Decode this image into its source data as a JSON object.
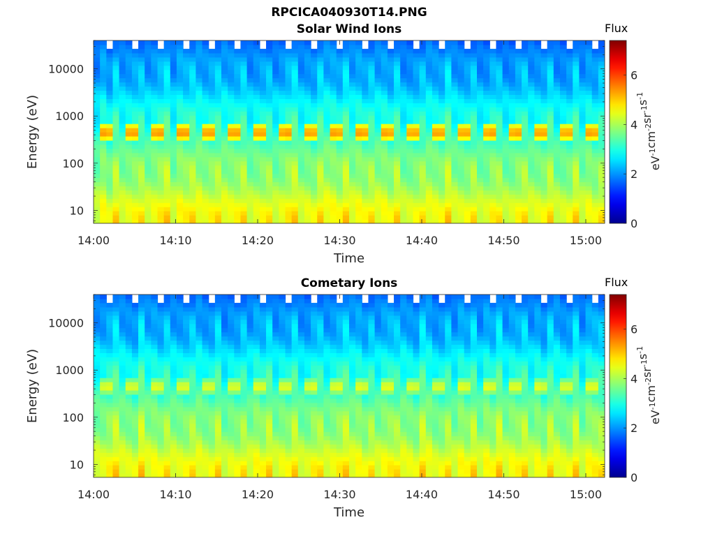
{
  "figure": {
    "title": "RPCICA040930T14.PNG"
  },
  "colormap": {
    "name": "jet",
    "stops": [
      "#00008f",
      "#0000ff",
      "#00ffff",
      "#ffff00",
      "#ff0000",
      "#800000"
    ]
  },
  "colorbar": {
    "label": "Flux",
    "units_text": "eV-1cm-2sr-1s-1",
    "ticks": [
      "0",
      "2",
      "4",
      "6"
    ],
    "range": [
      0,
      7.4
    ]
  },
  "axes": {
    "xlabel": "Time",
    "ylabel": "Energy (eV)",
    "xticks": [
      "14:00",
      "14:10",
      "14:20",
      "14:30",
      "14:40",
      "14:50",
      "15:00"
    ],
    "yticks": [
      "10",
      "100",
      "1000",
      "10000"
    ]
  },
  "chart_data": [
    {
      "type": "heatmap",
      "title": "Solar Wind Ions",
      "xlabel": "Time",
      "ylabel": "Energy (eV)",
      "x_range": [
        "14:00",
        "15:02"
      ],
      "y_range_eV": [
        5,
        40000
      ],
      "y_scale": "log",
      "color_range": [
        0,
        7.4
      ],
      "sweep_count": 20,
      "peak_energy_eV": 450,
      "peak_flux": 5.5,
      "low_energy_flux": 4.6,
      "high_energy_flux": 1.6
    },
    {
      "type": "heatmap",
      "title": "Cometary Ions",
      "xlabel": "Time",
      "ylabel": "Energy (eV)",
      "x_range": [
        "14:00",
        "15:02"
      ],
      "y_range_eV": [
        5,
        40000
      ],
      "y_scale": "log",
      "color_range": [
        0,
        7.4
      ],
      "sweep_count": 20,
      "peak_energy_eV": 450,
      "peak_flux": 4.6,
      "low_energy_flux": 4.6,
      "high_energy_flux": 1.6
    }
  ]
}
